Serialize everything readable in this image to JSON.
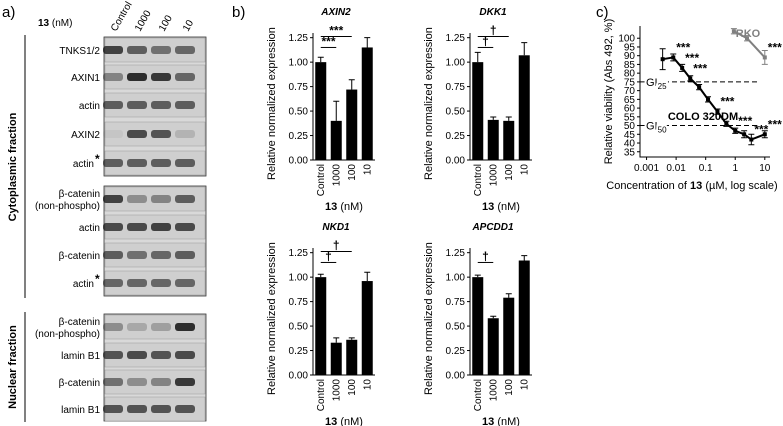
{
  "panel_labels": [
    "a)",
    "b)",
    "c)"
  ],
  "blot": {
    "header": {
      "compound": "13",
      "unit": "(nM)"
    },
    "lanes": [
      "Control",
      "1000",
      "100",
      "10"
    ],
    "groups": [
      {
        "label": "Cytoplasmic fraction",
        "rows": [
          {
            "lines": [
              "TNKS1/2"
            ]
          },
          {
            "lines": [
              "AXIN1"
            ]
          },
          {
            "lines": [
              "actin"
            ]
          },
          {
            "lines": [
              "AXIN2"
            ]
          },
          {
            "lines": [
              "actin"
            ],
            "mark": "*"
          },
          {
            "lines": [
              "β-catenin",
              "(non-phospho)"
            ]
          },
          {
            "lines": [
              "actin"
            ]
          },
          {
            "lines": [
              "β-catenin"
            ]
          },
          {
            "lines": [
              "actin"
            ],
            "mark": "*"
          }
        ]
      },
      {
        "label": "Nuclear fraction",
        "rows": [
          {
            "lines": [
              "β-catenin",
              "(non-phospho)"
            ]
          },
          {
            "lines": [
              "lamin B1"
            ]
          },
          {
            "lines": [
              "β-catenin"
            ]
          },
          {
            "lines": [
              "lamin B1"
            ]
          }
        ]
      }
    ]
  },
  "chart_data": [
    {
      "type": "bar",
      "title": "AXIN2",
      "ylabel": "Relative normalized expression",
      "xlabel": {
        "compound": "13",
        "unit": "(nM)"
      },
      "categories": [
        "Control",
        "1000",
        "100",
        "10"
      ],
      "values": [
        1.0,
        0.4,
        0.72,
        1.15
      ],
      "errors": [
        0.05,
        0.2,
        0.1,
        0.1
      ],
      "color": "#000000",
      "ylim": [
        0,
        1.4
      ],
      "yticks": [
        {
          "value": 0,
          "label": "0.00"
        },
        {
          "value": 0.25,
          "label": "0.25"
        },
        {
          "value": 0.5,
          "label": "0.50"
        },
        {
          "value": 0.75,
          "label": "0.75"
        },
        {
          "value": 1,
          "label": "1.00"
        },
        {
          "value": 1.25,
          "label": "1.25"
        }
      ],
      "annotations": [
        {
          "from": 0,
          "to": 1,
          "text": "***"
        },
        {
          "from": 0,
          "to": 2,
          "text": "***"
        }
      ]
    },
    {
      "type": "bar",
      "title": "DKK1",
      "ylabel": "Relative normalized expression",
      "xlabel": {
        "compound": "13",
        "unit": "(nM)"
      },
      "categories": [
        "Control",
        "1000",
        "100",
        "10"
      ],
      "values": [
        1.0,
        0.41,
        0.4,
        1.07
      ],
      "errors": [
        0.1,
        0.03,
        0.04,
        0.13
      ],
      "color": "#000000",
      "ylim": [
        0,
        1.4
      ],
      "yticks": [
        {
          "value": 0,
          "label": "0.00"
        },
        {
          "value": 0.25,
          "label": "0.25"
        },
        {
          "value": 0.5,
          "label": "0.50"
        },
        {
          "value": 0.75,
          "label": "0.75"
        },
        {
          "value": 1,
          "label": "1.00"
        },
        {
          "value": 1.25,
          "label": "1.25"
        }
      ],
      "annotations": [
        {
          "from": 0,
          "to": 1,
          "text": "†"
        },
        {
          "from": 0,
          "to": 2,
          "text": "†"
        }
      ]
    },
    {
      "type": "bar",
      "title": "NKD1",
      "ylabel": "Relative normalized expression",
      "xlabel": {
        "compound": "13",
        "unit": "(nM)"
      },
      "categories": [
        "Control",
        "1000",
        "100",
        "10"
      ],
      "values": [
        1.0,
        0.33,
        0.36,
        0.96
      ],
      "errors": [
        0.03,
        0.05,
        0.02,
        0.09
      ],
      "color": "#000000",
      "ylim": [
        0,
        1.4
      ],
      "yticks": [
        {
          "value": 0,
          "label": "0.00"
        },
        {
          "value": 0.25,
          "label": "0.25"
        },
        {
          "value": 0.5,
          "label": "0.50"
        },
        {
          "value": 0.75,
          "label": "0.75"
        },
        {
          "value": 1,
          "label": "1.00"
        },
        {
          "value": 1.25,
          "label": "1.25"
        }
      ],
      "annotations": [
        {
          "from": 0,
          "to": 1,
          "text": "†"
        },
        {
          "from": 0,
          "to": 2,
          "text": "†"
        }
      ]
    },
    {
      "type": "bar",
      "title": "APCDD1",
      "ylabel": "Relative normalized expression",
      "xlabel": {
        "compound": "13",
        "unit": "(nM)"
      },
      "categories": [
        "Control",
        "1000",
        "100",
        "10"
      ],
      "values": [
        1.0,
        0.58,
        0.79,
        1.17
      ],
      "errors": [
        0.02,
        0.02,
        0.04,
        0.05
      ],
      "color": "#000000",
      "ylim": [
        0,
        1.4
      ],
      "yticks": [
        {
          "value": 0,
          "label": "0.00"
        },
        {
          "value": 0.25,
          "label": "0.25"
        },
        {
          "value": 0.5,
          "label": "0.50"
        },
        {
          "value": 0.75,
          "label": "0.75"
        },
        {
          "value": 1,
          "label": "1.00"
        },
        {
          "value": 1.25,
          "label": "1.25"
        }
      ],
      "annotations": [
        {
          "from": 0,
          "to": 1,
          "text": "†"
        }
      ]
    },
    {
      "type": "line",
      "ylabel": "Relative viability (Abs 492, %)",
      "xlabel": {
        "before": "Concentration of",
        "compound": "13",
        "after": "(µM, log scale)"
      },
      "xscale": "log",
      "xlim": [
        0.0006,
        15
      ],
      "xticks": [
        0.001,
        0.01,
        0.1,
        1,
        10
      ],
      "ylim": [
        32,
        107
      ],
      "yticks": [
        35,
        40,
        45,
        50,
        55,
        60,
        65,
        70,
        75,
        80,
        85,
        90,
        95,
        100
      ],
      "reference_lines": [
        {
          "value": 75,
          "label": "GI",
          "sub": "25"
        },
        {
          "value": 50,
          "label": "GI",
          "sub": "50"
        }
      ],
      "series": [
        {
          "name": "COLO 320DM",
          "color": "#000000",
          "x": [
            0.0035,
            0.008,
            0.016,
            0.03,
            0.06,
            0.12,
            0.25,
            0.5,
            1,
            2,
            3.5,
            10
          ],
          "values": [
            88,
            89,
            83,
            77,
            72,
            65,
            58,
            51,
            47,
            45,
            42,
            45
          ],
          "errors": [
            6,
            2,
            2,
            1.5,
            1.5,
            1.5,
            1.5,
            1.5,
            1.5,
            2,
            3,
            2
          ],
          "annotations": [
            {
              "index": 1,
              "text": "***"
            },
            {
              "index": 2,
              "text": "***"
            },
            {
              "index": 3,
              "text": "***"
            },
            {
              "index": 6,
              "text": "***"
            },
            {
              "index": 8,
              "text": "***"
            },
            {
              "index": 10,
              "text": "***"
            },
            {
              "index": 11,
              "text": "***"
            }
          ]
        },
        {
          "name": "RKO",
          "color": "#808080",
          "x": [
            0.9,
            2.5,
            10
          ],
          "values": [
            104,
            100,
            89
          ],
          "errors": [
            1.5,
            1.5,
            4
          ],
          "annotations": [
            {
              "index": 2,
              "text": "***"
            }
          ]
        }
      ]
    }
  ]
}
